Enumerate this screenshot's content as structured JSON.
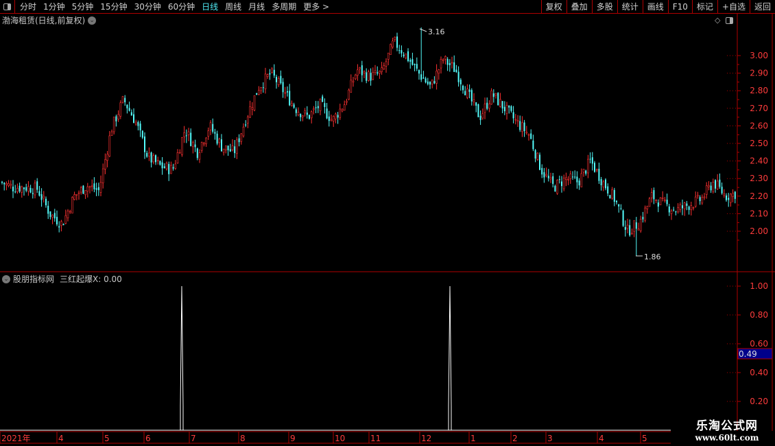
{
  "toolbar": {
    "periods": [
      "分时",
      "1分钟",
      "5分钟",
      "15分钟",
      "30分钟",
      "60分钟",
      "日线",
      "周线",
      "月线",
      "多周期",
      "更多 >"
    ],
    "active_period": "日线",
    "right_buttons": [
      "复权",
      "叠加",
      "多股",
      "统计",
      "画线",
      "F10",
      "标记",
      "+自选",
      "返回"
    ]
  },
  "main_chart": {
    "title": "渤海租赁(日线,前复权)",
    "high_label": "3.16",
    "low_label": "1.86"
  },
  "indicator": {
    "title": "股朋指标网",
    "value_label": "三红起爆X: 0.00",
    "cursor_value": "0.49"
  },
  "colors": {
    "up": "#ff3232",
    "down": "#54fcfc",
    "axis": "#b00000",
    "axis_text": "#ff3c3c",
    "cursor_bg": "#00008b"
  },
  "chart_data": [
    {
      "type": "candlestick",
      "ylim": [
        1.8,
        3.2
      ],
      "yticks": [
        "3.00",
        "2.90",
        "2.80",
        "2.70",
        "2.60",
        "2.50",
        "2.40",
        "2.30",
        "2.20",
        "2.10",
        "2.00"
      ],
      "approx_close_path": [
        2.28,
        2.25,
        2.25,
        2.24,
        2.1,
        2.04,
        2.2,
        2.26,
        2.23,
        2.58,
        2.75,
        2.62,
        2.42,
        2.37,
        2.35,
        2.58,
        2.45,
        2.6,
        2.48,
        2.45,
        2.65,
        2.82,
        2.9,
        2.8,
        2.7,
        2.65,
        2.72,
        2.63,
        2.73,
        2.92,
        2.88,
        2.9,
        3.08,
        3.0,
        2.9,
        2.82,
        2.98,
        2.92,
        2.78,
        2.65,
        2.78,
        2.7,
        2.62,
        2.55,
        2.35,
        2.25,
        2.3,
        2.28,
        2.4,
        2.28,
        2.18,
        2.0,
        2.05,
        2.2,
        2.15,
        2.12,
        2.15,
        2.18,
        2.28,
        2.2,
        2.22
      ],
      "high": 3.16,
      "low": 1.86
    },
    {
      "type": "line",
      "ylim": [
        0,
        1.1
      ],
      "yticks": [
        "1.00",
        "0.80",
        "0.60",
        "0.40",
        "0.20"
      ],
      "spikes": [
        {
          "month": "6-7",
          "value": 1.0
        },
        {
          "month": "12-1",
          "value": 1.0
        }
      ]
    }
  ],
  "x_axis": {
    "labels": [
      "2021年",
      "4",
      "5",
      "6",
      "7",
      "8",
      "9",
      "10",
      "11",
      "12",
      "1",
      "2",
      "3",
      "4",
      "5"
    ]
  },
  "watermark": {
    "name": "乐淘公式网",
    "url": "www.60lt.com"
  }
}
